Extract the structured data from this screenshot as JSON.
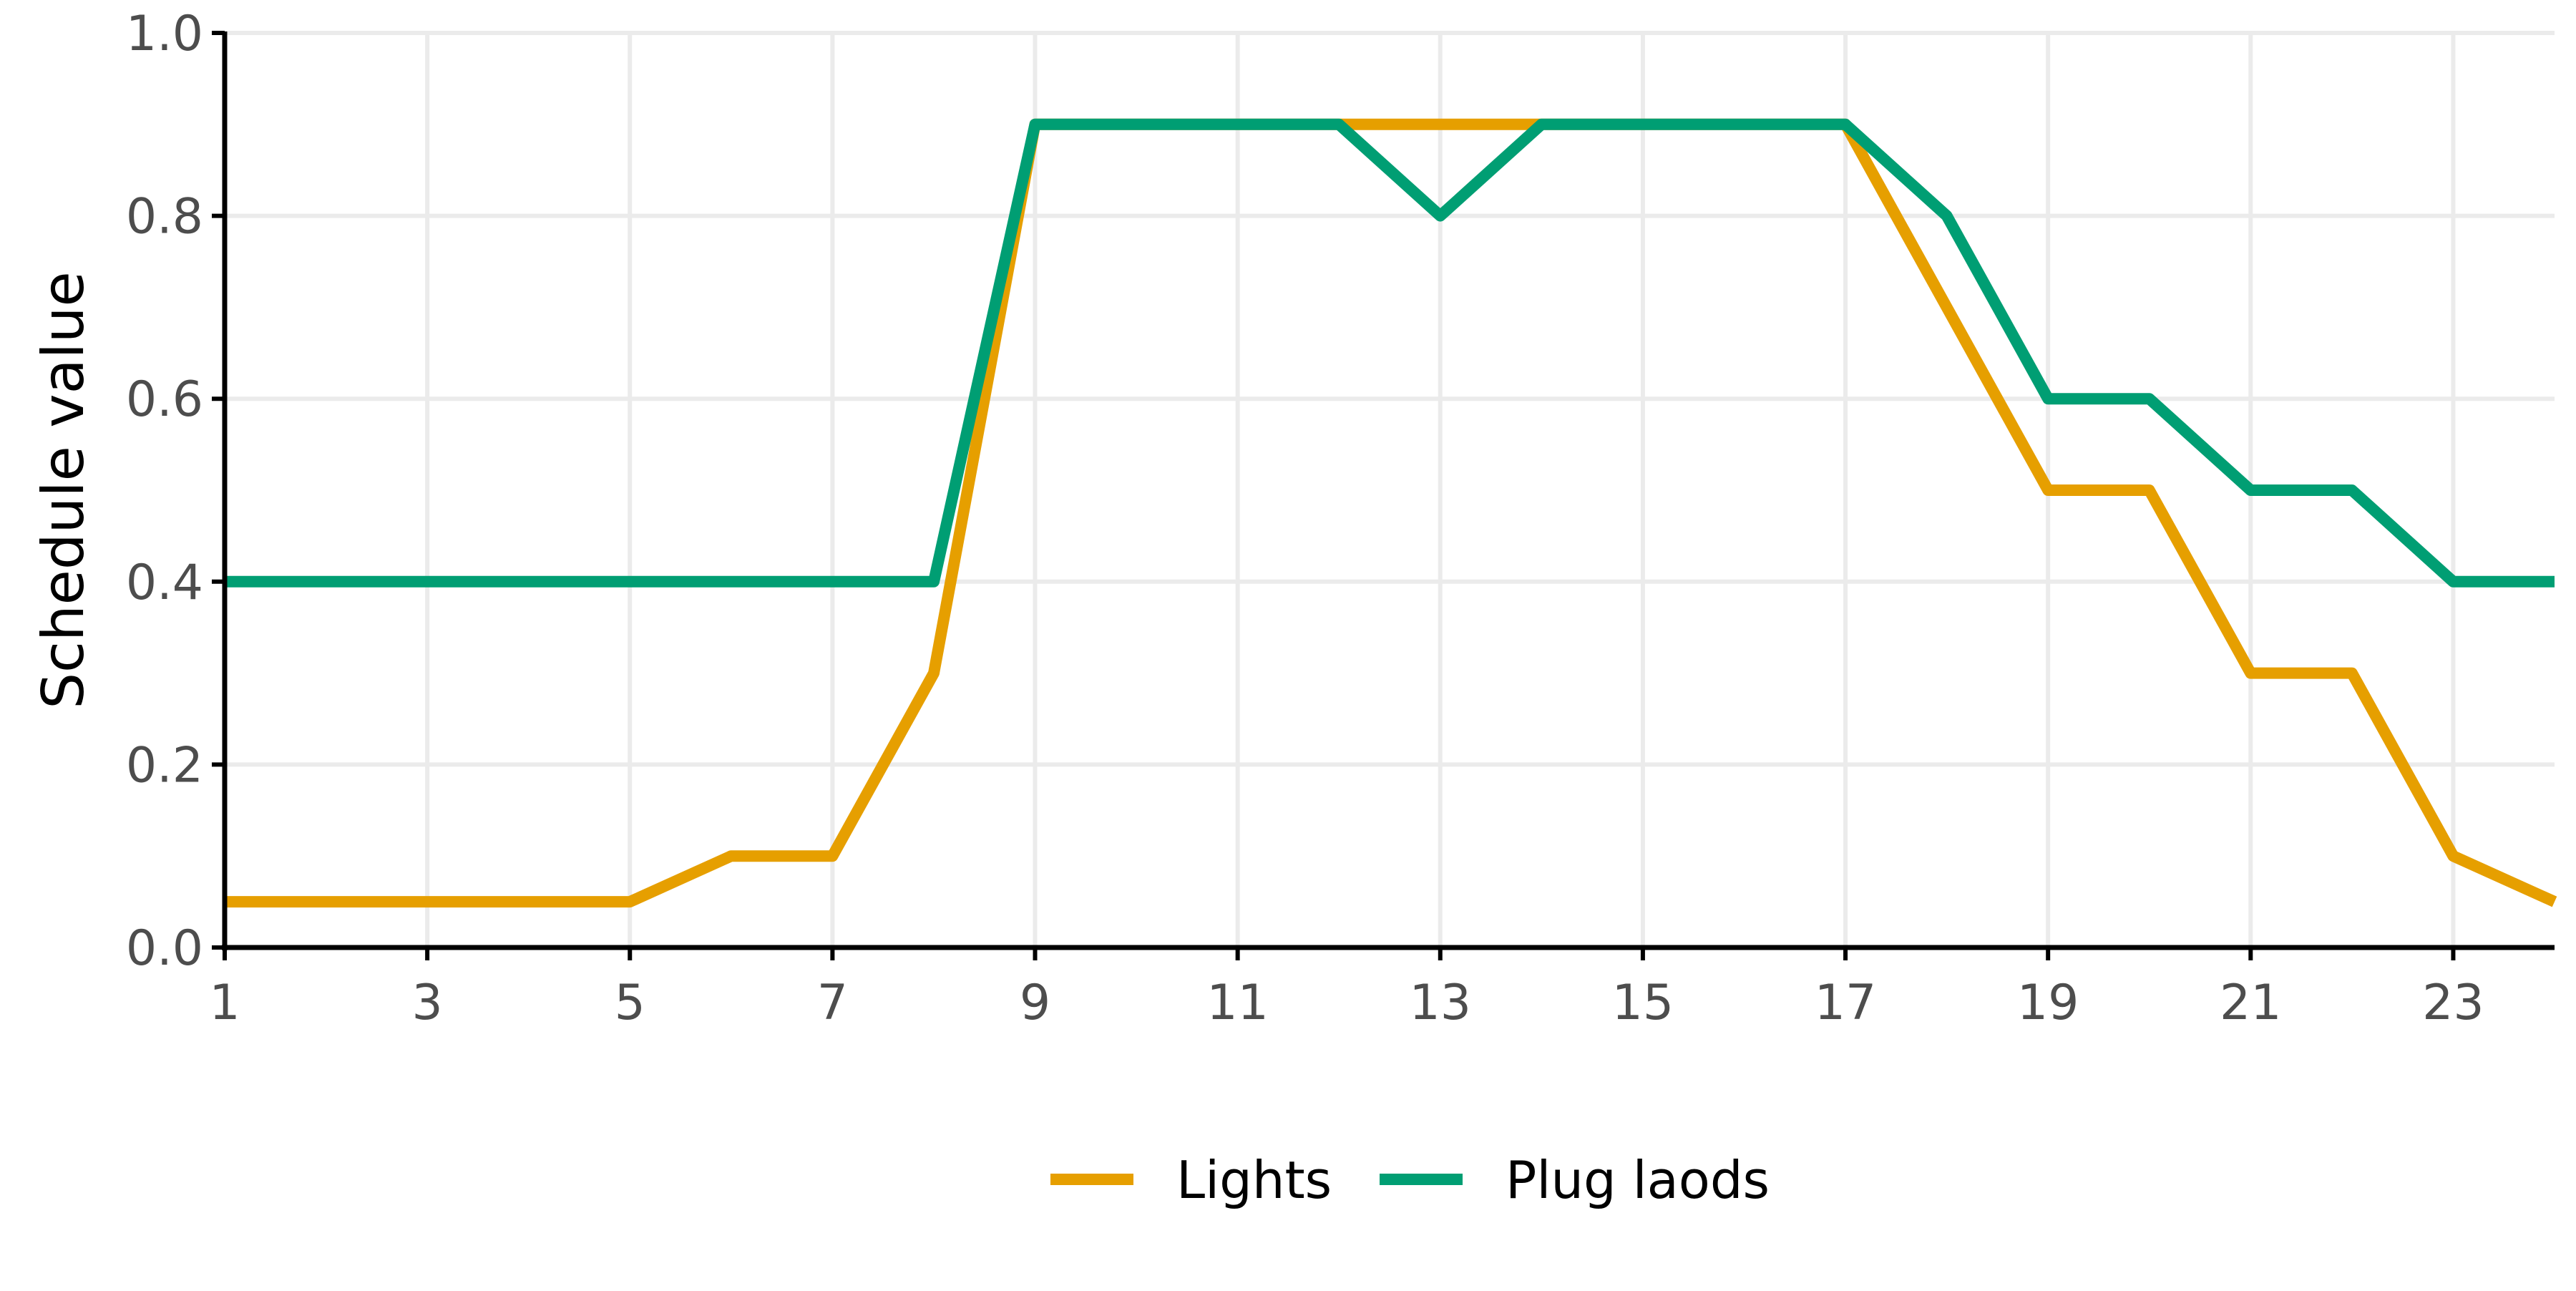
{
  "chart_data": {
    "type": "line",
    "title": "",
    "xlabel": "",
    "ylabel": "Schedule value",
    "x": [
      1,
      2,
      3,
      4,
      5,
      6,
      7,
      8,
      9,
      10,
      11,
      12,
      13,
      14,
      15,
      16,
      17,
      18,
      19,
      20,
      21,
      22,
      23,
      24
    ],
    "xlim": [
      1,
      24
    ],
    "ylim": [
      0,
      1
    ],
    "x_ticks": [
      1,
      3,
      5,
      7,
      9,
      11,
      13,
      15,
      17,
      19,
      21,
      23
    ],
    "x_tick_labels": [
      "1",
      "3",
      "5",
      "7",
      "9",
      "11",
      "13",
      "15",
      "17",
      "19",
      "21",
      "23"
    ],
    "y_ticks": [
      0,
      0.2,
      0.4,
      0.6,
      0.8,
      1.0
    ],
    "y_tick_labels": [
      "0.0",
      "0.2",
      "0.4",
      "0.6",
      "0.8",
      "1.0"
    ],
    "grid": true,
    "legend_position": "bottom",
    "series": [
      {
        "name": "Lights",
        "color": "#E69F00",
        "values": [
          0.05,
          0.05,
          0.05,
          0.05,
          0.05,
          0.1,
          0.1,
          0.3,
          0.9,
          0.9,
          0.9,
          0.9,
          0.9,
          0.9,
          0.9,
          0.9,
          0.9,
          0.7,
          0.5,
          0.5,
          0.3,
          0.3,
          0.1,
          0.05
        ]
      },
      {
        "name": "Plug laods",
        "color": "#009E73",
        "values": [
          0.4,
          0.4,
          0.4,
          0.4,
          0.4,
          0.4,
          0.4,
          0.4,
          0.9,
          0.9,
          0.9,
          0.9,
          0.8,
          0.9,
          0.9,
          0.9,
          0.9,
          0.8,
          0.6,
          0.6,
          0.5,
          0.5,
          0.4,
          0.4
        ]
      }
    ]
  }
}
